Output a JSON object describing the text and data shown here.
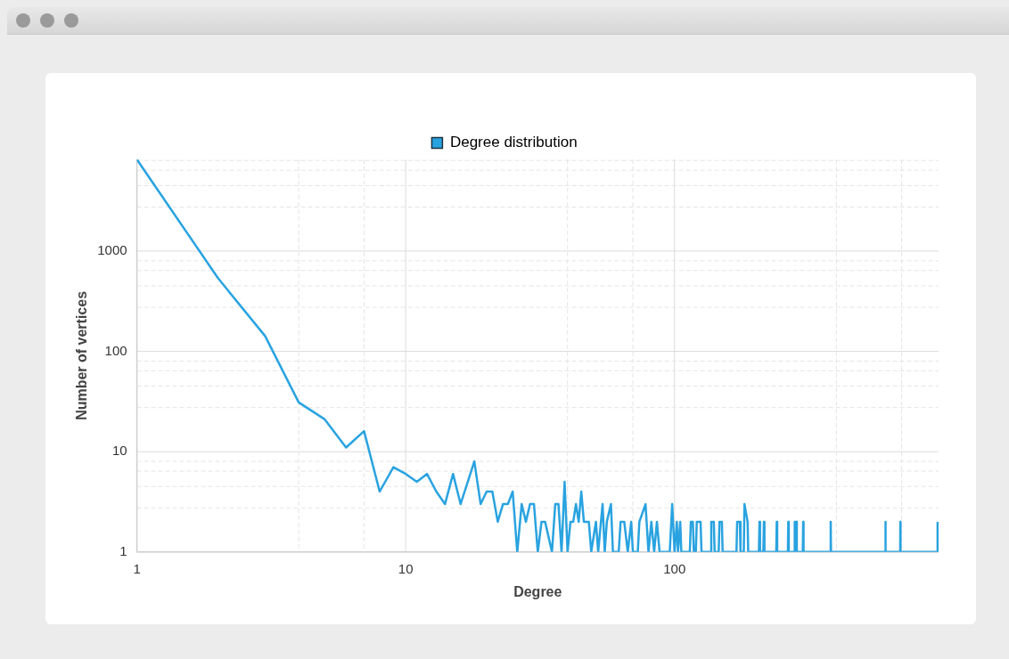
{
  "chart_data": {
    "type": "line",
    "xlabel": "Degree",
    "ylabel": "Number of vertices",
    "legend": "top",
    "log": "xy",
    "grid": true,
    "marker": "none",
    "line_style": "solid",
    "xlim": [
      1,
      960
    ],
    "ylim": [
      1,
      8200
    ],
    "xticks": [
      1,
      {
        "value": 4,
        "label": null
      },
      {
        "value": 7,
        "label": null
      },
      10,
      {
        "value": 40,
        "label": null
      },
      {
        "value": 70,
        "label": null
      },
      100,
      {
        "value": 400,
        "label": null
      },
      {
        "value": 700,
        "label": null
      }
    ],
    "yticks": [
      1,
      {
        "value": 2.75,
        "label": null
      },
      {
        "value": 4.5,
        "label": null
      },
      {
        "value": 6.4,
        "label": null
      },
      {
        "value": 8,
        "label": null
      },
      10,
      {
        "value": 27.5,
        "label": null
      },
      {
        "value": 45,
        "label": null
      },
      {
        "value": 64,
        "label": null
      },
      {
        "value": 80,
        "label": null
      },
      100,
      {
        "value": 275,
        "label": null
      },
      {
        "value": 450,
        "label": null
      },
      {
        "value": 640,
        "label": null
      },
      {
        "value": 800,
        "label": null
      },
      1000,
      {
        "value": 2750,
        "label": null
      },
      {
        "value": 4500,
        "label": null
      },
      {
        "value": 6400,
        "label": null
      },
      {
        "value": 8000,
        "label": null
      }
    ],
    "series": [
      {
        "name": "Degree distribution",
        "color": "#29a3e0",
        "x": [
          1,
          2,
          3,
          4,
          5,
          6,
          7,
          8,
          9,
          10,
          11,
          12,
          13,
          14,
          15,
          16,
          18,
          19,
          20,
          21,
          22,
          23,
          24,
          25,
          26,
          27,
          28,
          29,
          30,
          31,
          32,
          33,
          35,
          36,
          37,
          38,
          39,
          40,
          41,
          42,
          43,
          44,
          45,
          46,
          48,
          49,
          51,
          52,
          54,
          55,
          56,
          58,
          59,
          62,
          63,
          65,
          67,
          69,
          70,
          73,
          74,
          78,
          80,
          82,
          84,
          86,
          88,
          96,
          98,
          100,
          102,
          103,
          105,
          106,
          114,
          115,
          117,
          118,
          120,
          121,
          125,
          126,
          136,
          137,
          140,
          141,
          146,
          147,
          150,
          151,
          170,
          171,
          175,
          176,
          181,
          182,
          187,
          188,
          206,
          207,
          208,
          214,
          215,
          216,
          239,
          240,
          241,
          264,
          265,
          266,
          279,
          280,
          284,
          285,
          300,
          301,
          302,
          380,
          381,
          382,
          608,
          609,
          610,
          691,
          692,
          693,
          951,
          952
        ],
        "values": [
          8200,
          540,
          142,
          31,
          21,
          11,
          16,
          4,
          7,
          6,
          5,
          6,
          4,
          3,
          6,
          3,
          8,
          3,
          4,
          4,
          2,
          3,
          3,
          4,
          1,
          3,
          2,
          3,
          3,
          1,
          2,
          2,
          1,
          3,
          3,
          1,
          5,
          1,
          2,
          2,
          3,
          2,
          4,
          2,
          2,
          1,
          2,
          1,
          3,
          1,
          2,
          3,
          1,
          1,
          2,
          2,
          1,
          2,
          1,
          1,
          2,
          3,
          1,
          2,
          1,
          2,
          1,
          1,
          3,
          1,
          2,
          1,
          2,
          1,
          1,
          2,
          2,
          1,
          1,
          2,
          2,
          1,
          1,
          2,
          2,
          1,
          1,
          2,
          2,
          1,
          1,
          2,
          2,
          1,
          1,
          3,
          2,
          1,
          1,
          2,
          1,
          1,
          2,
          1,
          1,
          2,
          1,
          1,
          2,
          1,
          1,
          2,
          2,
          1,
          1,
          2,
          1,
          1,
          2,
          1,
          1,
          2,
          1,
          1,
          2,
          1,
          1,
          2
        ]
      }
    ]
  }
}
